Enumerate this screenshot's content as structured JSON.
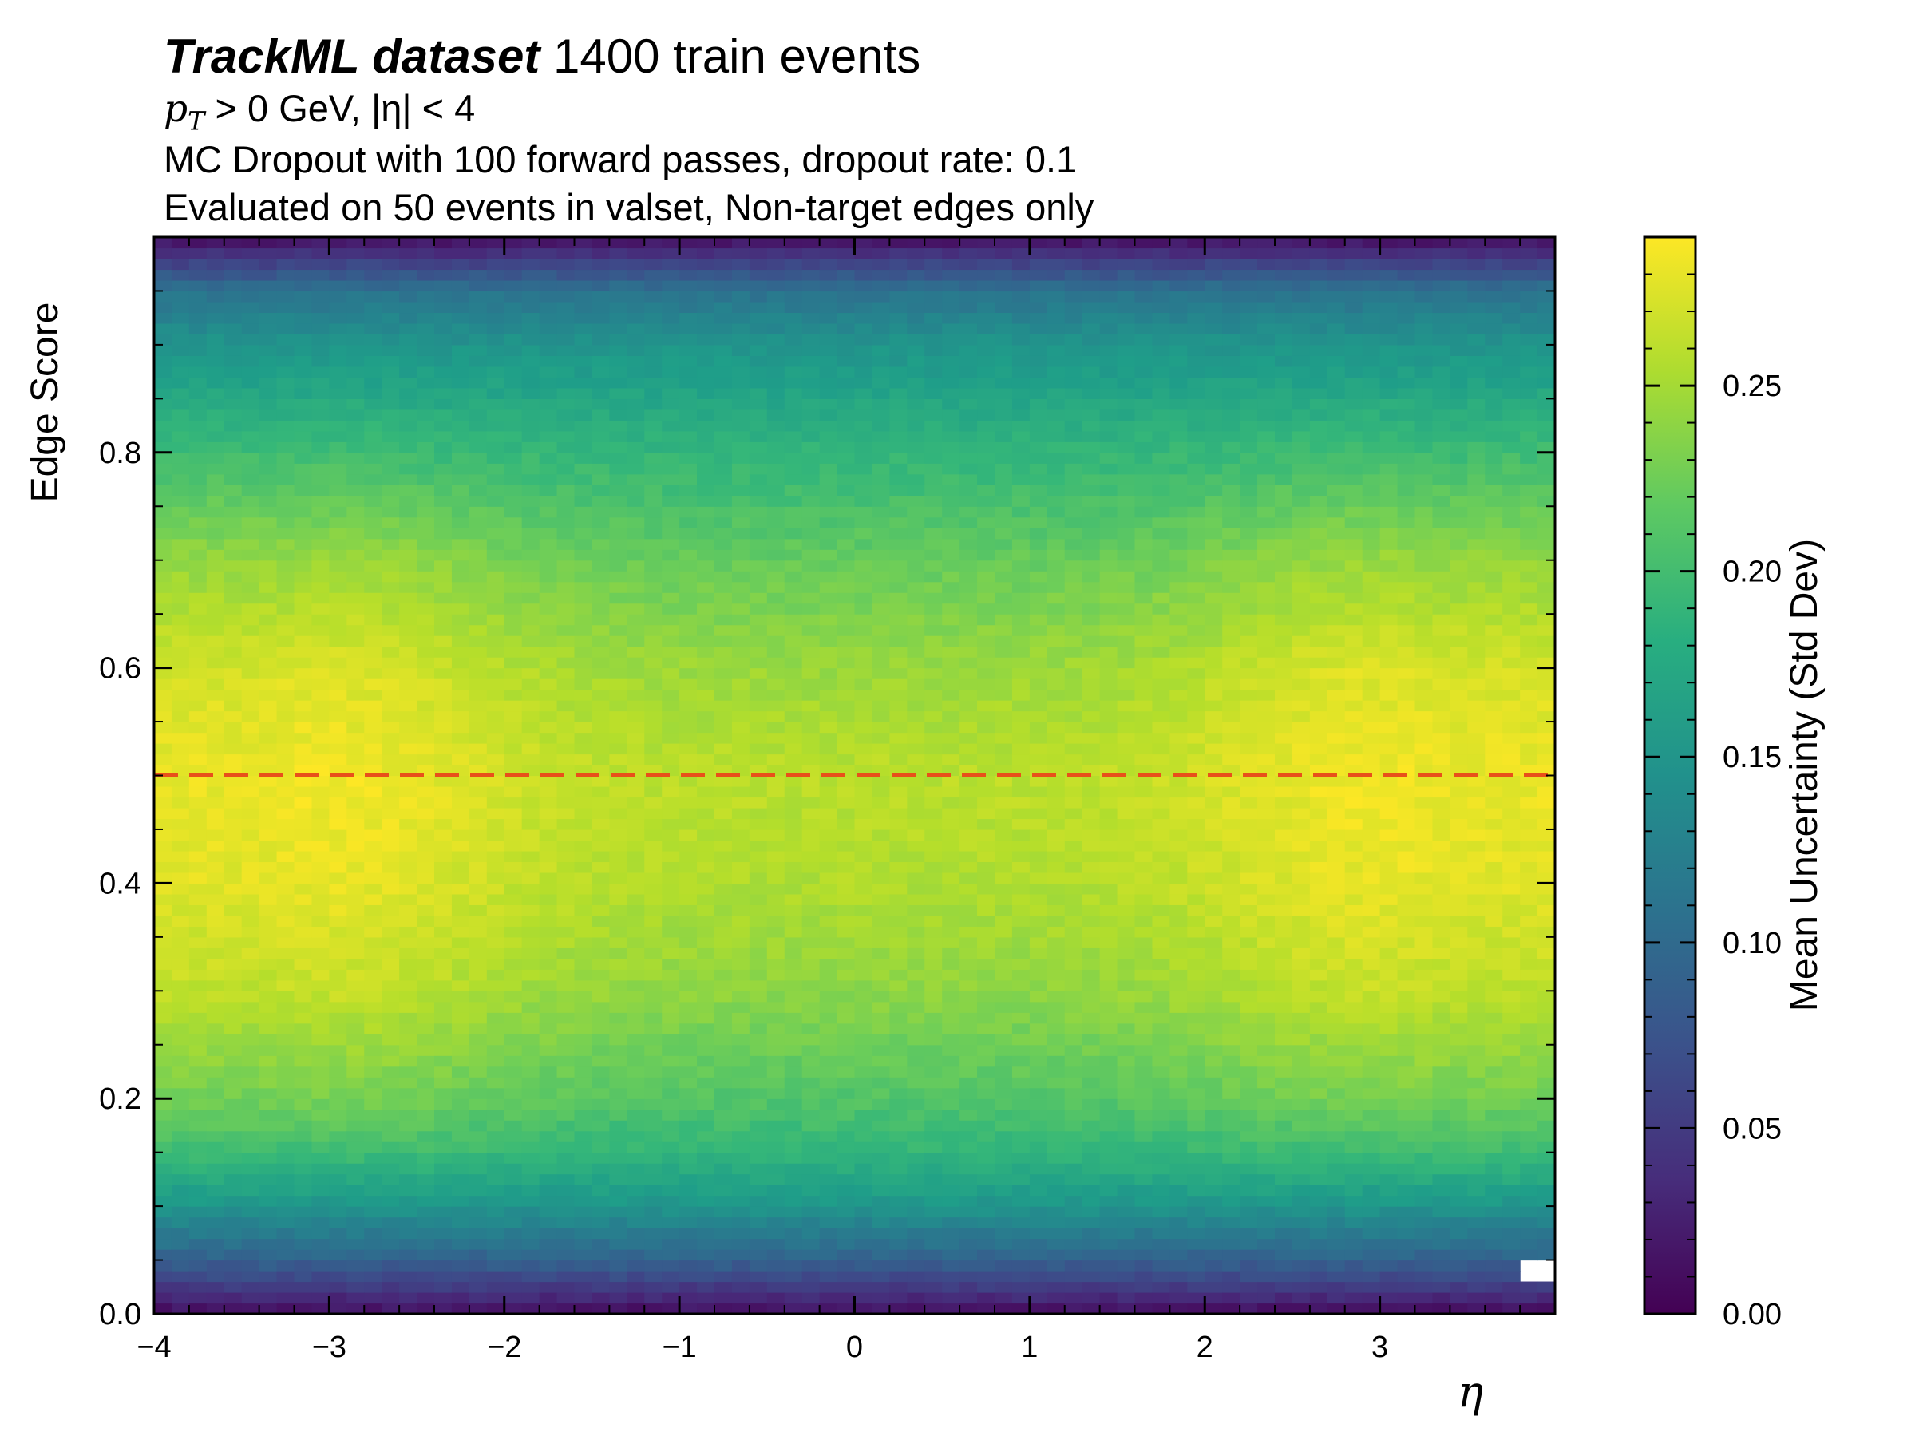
{
  "header": {
    "title_bold": "TrackML dataset",
    "title_rest": " 1400 train events",
    "line2_p": "p",
    "line2_sub": "T",
    "line2_rest": " > 0 GeV, |η| < 4",
    "line3": "MC Dropout with 100 forward passes, dropout rate: 0.1",
    "line4": "Evaluated on 50 events in valset, Non-target edges only"
  },
  "chart_data": {
    "type": "heatmap",
    "xlabel": "η",
    "ylabel": "Edge Score",
    "colorbar_label": "Mean Uncertainty (Std Dev)",
    "colormap": "viridis",
    "xlim": [
      -4,
      4
    ],
    "ylim": [
      0,
      1
    ],
    "clim": [
      0,
      0.29
    ],
    "x_ticks": [
      -4,
      -3,
      -2,
      -1,
      0,
      1,
      2,
      3
    ],
    "x_tick_labels": [
      "−4",
      "−3",
      "−2",
      "−1",
      "0",
      "1",
      "2",
      "3"
    ],
    "y_ticks": [
      0.0,
      0.2,
      0.4,
      0.6,
      0.8
    ],
    "y_tick_labels": [
      "0.0",
      "0.2",
      "0.4",
      "0.6",
      "0.8"
    ],
    "colorbar_ticks": [
      0.0,
      0.05,
      0.1,
      0.15,
      0.2,
      0.25
    ],
    "colorbar_tick_labels": [
      "0.00",
      "0.05",
      "0.10",
      "0.15",
      "0.20",
      "0.25"
    ],
    "bins_x": 80,
    "bins_y": 100,
    "threshold_line": {
      "y": 0.5,
      "color": "#e8501a",
      "style": "dashed"
    },
    "profile_edge_score": [
      0.0,
      0.05,
      0.1,
      0.15,
      0.2,
      0.3,
      0.4,
      0.5,
      0.6,
      0.7,
      0.8,
      0.9,
      0.95,
      1.0
    ],
    "profile_uncertainty_at_eta_0": [
      0.01,
      0.09,
      0.15,
      0.19,
      0.21,
      0.24,
      0.255,
      0.26,
      0.245,
      0.22,
      0.19,
      0.15,
      0.11,
      0.01
    ],
    "profile_uncertainty_at_eta_3": [
      0.01,
      0.09,
      0.15,
      0.2,
      0.23,
      0.265,
      0.28,
      0.285,
      0.275,
      0.245,
      0.2,
      0.15,
      0.11,
      0.01
    ],
    "empty_bin": {
      "eta": 3.9,
      "edge_score": 0.04
    }
  }
}
